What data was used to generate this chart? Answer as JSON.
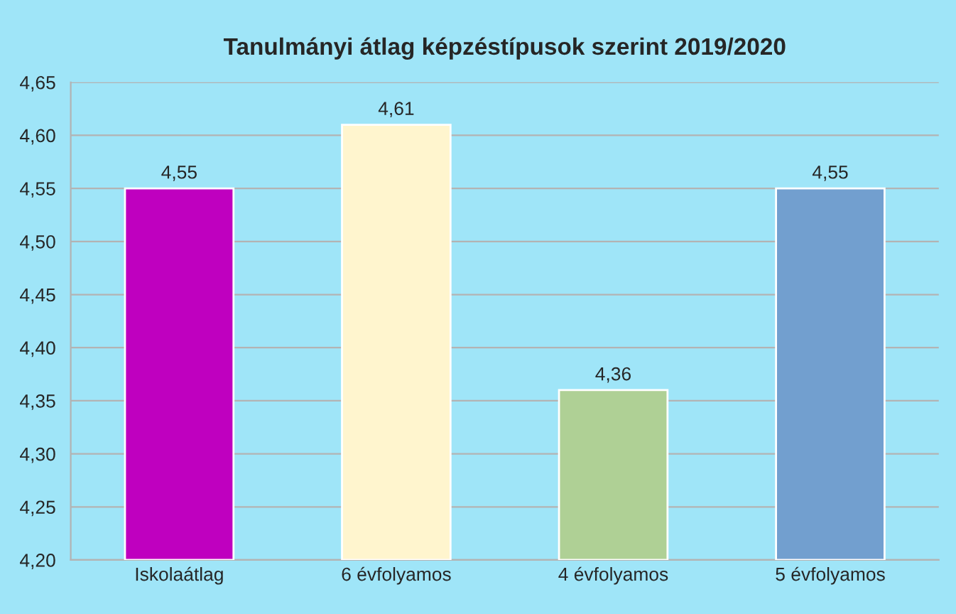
{
  "chart_data": {
    "type": "bar",
    "title": "Tanulmányi átlag képzéstípusok szerint 2019/2020",
    "categories": [
      "Iskolaátlag",
      "6 évfolyamos",
      "4 évfolyamos",
      "5 évfolyamos"
    ],
    "values": [
      4.55,
      4.61,
      4.36,
      4.55
    ],
    "value_labels": [
      "4,55",
      "4,61",
      "4,36",
      "4,55"
    ],
    "colors": [
      "#bf00bf",
      "#fff5ce",
      "#afd095",
      "#729fcf"
    ],
    "ylim": [
      4.2,
      4.65
    ],
    "yticks": [
      {
        "value": 4.2,
        "label": "4,20"
      },
      {
        "value": 4.25,
        "label": "4,25"
      },
      {
        "value": 4.3,
        "label": "4,30"
      },
      {
        "value": 4.35,
        "label": "4,35"
      },
      {
        "value": 4.4,
        "label": "4,40"
      },
      {
        "value": 4.45,
        "label": "4,45"
      },
      {
        "value": 4.5,
        "label": "4,50"
      },
      {
        "value": 4.55,
        "label": "4,55"
      },
      {
        "value": 4.6,
        "label": "4,60"
      },
      {
        "value": 4.65,
        "label": "4,65"
      }
    ],
    "grid": "y",
    "legend": false
  }
}
